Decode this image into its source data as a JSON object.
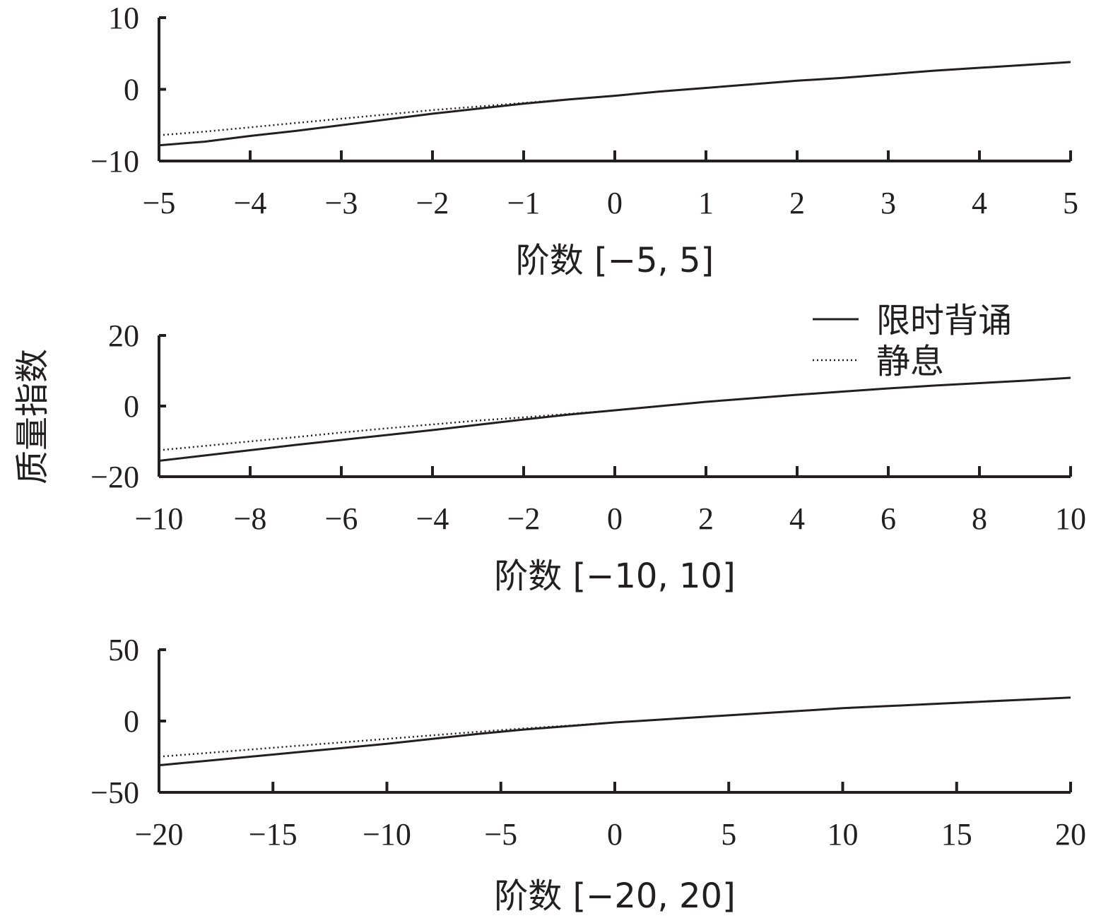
{
  "chart_data": [
    {
      "type": "line",
      "xlabel": "阶数 [−5, 5]",
      "xlim": [
        -5,
        5
      ],
      "ylim": [
        -10,
        10
      ],
      "xticks": [
        "−5",
        "−4",
        "−3",
        "−2",
        "−1",
        "0",
        "1",
        "2",
        "3",
        "4",
        "5"
      ],
      "xtick_values": [
        -5,
        -4,
        -3,
        -2,
        -1,
        0,
        1,
        2,
        3,
        4,
        5
      ],
      "yticks": [
        "−10",
        "0",
        "10"
      ],
      "ytick_values": [
        -10,
        0,
        10
      ],
      "series": [
        {
          "name": "限时背诵",
          "style": "solid",
          "x": [
            -5,
            -4.5,
            -4,
            -3.5,
            -3,
            -2.5,
            -2,
            -1.5,
            -1,
            -0.5,
            0,
            0.5,
            1,
            1.5,
            2,
            2.5,
            3,
            3.5,
            4,
            4.5,
            5
          ],
          "y": [
            -7.8,
            -7.3,
            -6.5,
            -5.8,
            -5.0,
            -4.2,
            -3.4,
            -2.7,
            -2.0,
            -1.4,
            -0.9,
            -0.3,
            0.2,
            0.7,
            1.2,
            1.6,
            2.1,
            2.6,
            3.0,
            3.4,
            3.8
          ]
        },
        {
          "name": "静息",
          "style": "dotted",
          "x": [
            -5,
            -4.5,
            -4,
            -3.5,
            -3,
            -2.5,
            -2,
            -1.5,
            -1,
            -0.5,
            0,
            0.5,
            1,
            1.5,
            2,
            2.5,
            3,
            3.5,
            4,
            4.5,
            5
          ],
          "y": [
            -6.4,
            -5.9,
            -5.3,
            -4.7,
            -4.1,
            -3.5,
            -2.9,
            -2.4,
            -1.9,
            -1.4,
            -0.9,
            -0.3,
            0.2,
            0.7,
            1.2,
            1.6,
            2.1,
            2.6,
            3.0,
            3.4,
            3.8
          ]
        }
      ]
    },
    {
      "type": "line",
      "xlabel": "阶数 [−10, 10]",
      "xlim": [
        -10,
        10
      ],
      "ylim": [
        -20,
        20
      ],
      "xticks": [
        "−10",
        "−8",
        "−6",
        "−4",
        "−2",
        "0",
        "2",
        "4",
        "6",
        "8",
        "10"
      ],
      "xtick_values": [
        -10,
        -8,
        -6,
        -4,
        -2,
        0,
        2,
        4,
        6,
        8,
        10
      ],
      "yticks": [
        "−20",
        "0",
        "20"
      ],
      "ytick_values": [
        -20,
        0,
        20
      ],
      "series": [
        {
          "name": "限时背诵",
          "style": "solid",
          "x": [
            -10,
            -9,
            -8,
            -7,
            -6,
            -5,
            -4,
            -3,
            -2,
            -1,
            0,
            1,
            2,
            3,
            4,
            5,
            6,
            7,
            8,
            9,
            10
          ],
          "y": [
            -15.5,
            -14.0,
            -12.5,
            -11.0,
            -9.6,
            -8.2,
            -6.8,
            -5.3,
            -3.8,
            -2.4,
            -1.2,
            0.0,
            1.2,
            2.2,
            3.2,
            4.1,
            5.0,
            5.8,
            6.5,
            7.2,
            8.0
          ]
        },
        {
          "name": "静息",
          "style": "dotted",
          "x": [
            -10,
            -9,
            -8,
            -7,
            -6,
            -5,
            -4,
            -3,
            -2,
            -1,
            0,
            1,
            2,
            3,
            4,
            5,
            6,
            7,
            8,
            9,
            10
          ],
          "y": [
            -12.5,
            -11.3,
            -10.0,
            -8.8,
            -7.5,
            -6.3,
            -5.2,
            -4.1,
            -3.2,
            -2.2,
            -1.2,
            0.0,
            1.2,
            2.2,
            3.2,
            4.1,
            5.0,
            5.8,
            6.5,
            7.2,
            8.0
          ]
        }
      ]
    },
    {
      "type": "line",
      "xlabel": "阶数 [−20, 20]",
      "xlim": [
        -20,
        20
      ],
      "ylim": [
        -50,
        50
      ],
      "xticks": [
        "−20",
        "−15",
        "−10",
        "−5",
        "0",
        "5",
        "10",
        "15",
        "20"
      ],
      "xtick_values": [
        -20,
        -15,
        -10,
        -5,
        0,
        5,
        10,
        15,
        20
      ],
      "yticks": [
        "−50",
        "0",
        "50"
      ],
      "ytick_values": [
        -50,
        0,
        50
      ],
      "series": [
        {
          "name": "限时背诵",
          "style": "solid",
          "x": [
            -20,
            -18,
            -16,
            -14,
            -12,
            -10,
            -8,
            -6,
            -4,
            -2,
            0,
            2,
            4,
            6,
            8,
            10,
            12,
            14,
            16,
            18,
            20
          ],
          "y": [
            -31,
            -28,
            -25,
            -22,
            -19,
            -16,
            -12.5,
            -9,
            -6,
            -3.5,
            -1,
            1,
            3,
            5,
            7,
            9,
            10.5,
            12,
            13.5,
            15,
            16.5
          ]
        },
        {
          "name": "静息",
          "style": "dotted",
          "x": [
            -20,
            -18,
            -16,
            -14,
            -12,
            -10,
            -8,
            -6,
            -4,
            -2,
            0,
            2,
            4,
            6,
            8,
            10,
            12,
            14,
            16,
            18,
            20
          ],
          "y": [
            -25,
            -22.5,
            -20,
            -17.5,
            -15,
            -12.5,
            -10,
            -7.5,
            -5.2,
            -3.2,
            -1,
            1,
            3,
            5,
            7,
            9,
            10.5,
            12,
            13.5,
            15,
            16.5
          ]
        }
      ]
    }
  ],
  "ylabel": "质量指数",
  "legend": {
    "placement": "top-right of middle panel",
    "entries": [
      {
        "label": "限时背诵",
        "style": "solid"
      },
      {
        "label": "静息",
        "style": "dotted"
      }
    ]
  },
  "colors": {
    "ink": "#231f20"
  }
}
